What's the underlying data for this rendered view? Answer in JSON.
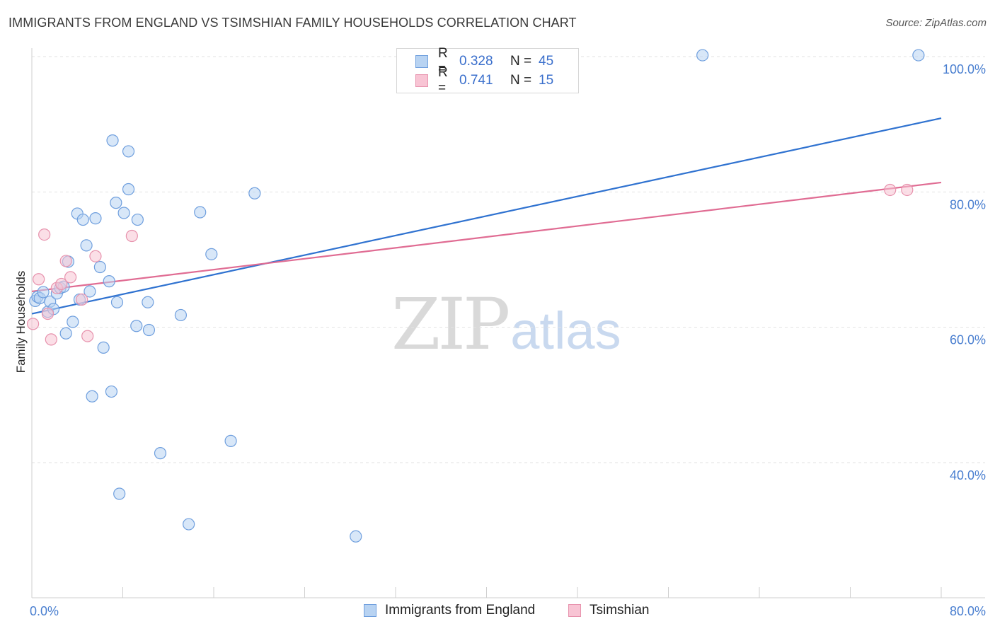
{
  "title": "IMMIGRANTS FROM ENGLAND VS TSIMSHIAN FAMILY HOUSEHOLDS CORRELATION CHART",
  "source": "Source: ZipAtlas.com",
  "watermark": {
    "zip": "ZIP",
    "atlas": "atlas"
  },
  "legend": {
    "rows": [
      {
        "r_label": "R =",
        "r_value": "0.328",
        "n_label": "N =",
        "n_value": "45"
      },
      {
        "r_label": "R =",
        "r_value": "0.741",
        "n_label": "N =",
        "n_value": "15"
      }
    ]
  },
  "bottom_legend": [
    "Immigrants from England",
    "Tsimshian"
  ],
  "colors": {
    "england_fill": "#b8d3f2",
    "england_stroke": "#6f9fde",
    "england_line": "#2f72d0",
    "tsimshian_fill": "#f8c4d4",
    "tsimshian_stroke": "#e792ad",
    "tsimshian_line": "#e06c93",
    "tick_text": "#4a7fd0"
  },
  "chart_data": {
    "type": "scatter",
    "title": "IMMIGRANTS FROM ENGLAND VS TSIMSHIAN FAMILY HOUSEHOLDS CORRELATION CHART",
    "xlabel": "",
    "ylabel": "Family Households",
    "xlim": [
      0,
      80
    ],
    "ylim": [
      20,
      102
    ],
    "x_tick_labels": [
      {
        "value": 0,
        "label": "0.0%"
      },
      {
        "value": 80,
        "label": "80.0%"
      }
    ],
    "y_tick_labels": [
      {
        "value": 40,
        "label": "40.0%"
      },
      {
        "value": 60,
        "label": "60.0%"
      },
      {
        "value": 80,
        "label": "80.0%"
      },
      {
        "value": 100,
        "label": "100.0%"
      }
    ],
    "grid": true,
    "series": [
      {
        "name": "Immigrants from England",
        "r": 0.328,
        "n": 45,
        "trend": {
          "x": [
            0,
            80
          ],
          "y": [
            62.0,
            90.9
          ]
        },
        "points": [
          {
            "x": 0.3,
            "y": 63.9
          },
          {
            "x": 0.5,
            "y": 64.5
          },
          {
            "x": 0.7,
            "y": 64.3
          },
          {
            "x": 1.0,
            "y": 65.2
          },
          {
            "x": 1.4,
            "y": 62.3
          },
          {
            "x": 1.6,
            "y": 63.8
          },
          {
            "x": 1.9,
            "y": 62.7
          },
          {
            "x": 2.2,
            "y": 65.0
          },
          {
            "x": 2.5,
            "y": 65.8
          },
          {
            "x": 2.8,
            "y": 66.0
          },
          {
            "x": 3.0,
            "y": 59.1
          },
          {
            "x": 3.2,
            "y": 69.7
          },
          {
            "x": 3.6,
            "y": 60.8
          },
          {
            "x": 4.0,
            "y": 76.8
          },
          {
            "x": 4.2,
            "y": 64.1
          },
          {
            "x": 4.5,
            "y": 75.9
          },
          {
            "x": 4.8,
            "y": 72.1
          },
          {
            "x": 5.1,
            "y": 65.3
          },
          {
            "x": 5.3,
            "y": 49.8
          },
          {
            "x": 5.6,
            "y": 76.1
          },
          {
            "x": 6.0,
            "y": 68.9
          },
          {
            "x": 6.3,
            "y": 57.0
          },
          {
            "x": 6.8,
            "y": 66.8
          },
          {
            "x": 7.0,
            "y": 50.5
          },
          {
            "x": 7.5,
            "y": 63.7
          },
          {
            "x": 7.7,
            "y": 35.4
          },
          {
            "x": 8.5,
            "y": 80.4
          },
          {
            "x": 9.2,
            "y": 60.2
          },
          {
            "x": 10.2,
            "y": 63.7
          },
          {
            "x": 11.3,
            "y": 41.4
          },
          {
            "x": 13.8,
            "y": 30.9
          },
          {
            "x": 15.8,
            "y": 70.8
          },
          {
            "x": 17.5,
            "y": 43.2
          },
          {
            "x": 28.5,
            "y": 29.1
          },
          {
            "x": 59.0,
            "y": 100.2
          },
          {
            "x": 78.0,
            "y": 100.2
          },
          {
            "x": 7.1,
            "y": 87.6
          },
          {
            "x": 8.5,
            "y": 86.0
          },
          {
            "x": 14.8,
            "y": 77.0
          },
          {
            "x": 19.6,
            "y": 79.8
          },
          {
            "x": 9.3,
            "y": 75.9
          },
          {
            "x": 8.1,
            "y": 76.9
          },
          {
            "x": 7.4,
            "y": 78.4
          },
          {
            "x": 13.1,
            "y": 61.8
          },
          {
            "x": 10.3,
            "y": 59.6
          }
        ]
      },
      {
        "name": "Tsimshian",
        "r": 0.741,
        "n": 15,
        "trend": {
          "x": [
            0,
            80
          ],
          "y": [
            65.3,
            81.4
          ]
        },
        "points": [
          {
            "x": 0.1,
            "y": 60.5
          },
          {
            "x": 0.6,
            "y": 67.1
          },
          {
            "x": 1.1,
            "y": 73.7
          },
          {
            "x": 1.4,
            "y": 62.0
          },
          {
            "x": 1.7,
            "y": 58.2
          },
          {
            "x": 2.2,
            "y": 65.8
          },
          {
            "x": 2.6,
            "y": 66.4
          },
          {
            "x": 3.0,
            "y": 69.8
          },
          {
            "x": 3.4,
            "y": 67.4
          },
          {
            "x": 4.4,
            "y": 64.1
          },
          {
            "x": 4.9,
            "y": 58.7
          },
          {
            "x": 5.6,
            "y": 70.5
          },
          {
            "x": 8.8,
            "y": 73.5
          },
          {
            "x": 75.5,
            "y": 80.3
          },
          {
            "x": 77.0,
            "y": 80.3
          }
        ]
      }
    ]
  }
}
